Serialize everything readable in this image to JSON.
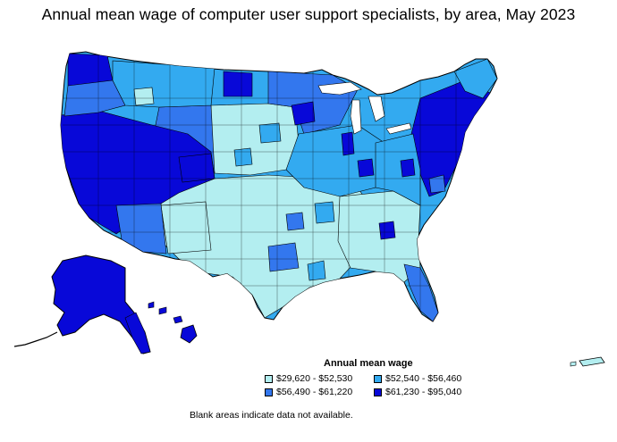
{
  "title": "Annual mean wage of computer user support specialists, by area, May 2023",
  "legend": {
    "title": "Annual mean wage",
    "items": [
      {
        "label": "$29,620 - $52,530",
        "color": "#b3eef0"
      },
      {
        "label": "$52,540 - $56,460",
        "color": "#33aaf0"
      },
      {
        "label": "$56,490 - $61,220",
        "color": "#3377ee"
      },
      {
        "label": "$61,230 - $95,040",
        "color": "#0808d8"
      }
    ]
  },
  "note": "Blank areas indicate data not available.",
  "colors": {
    "tier1": "#b3eef0",
    "tier2": "#33aaf0",
    "tier3": "#3377ee",
    "tier4": "#0808d8",
    "border": "#000000"
  }
}
